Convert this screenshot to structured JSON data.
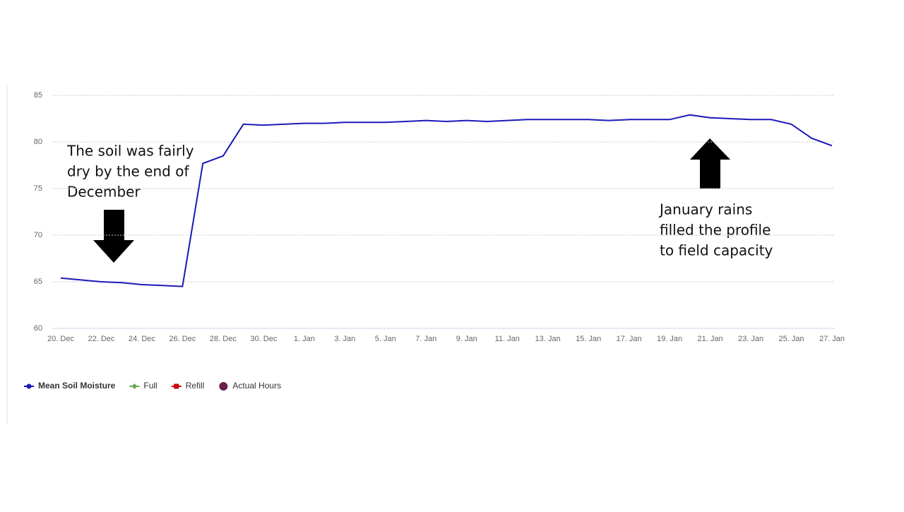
{
  "chart_data": {
    "type": "line",
    "categories": [
      "20. Dec",
      null,
      "22. Dec",
      null,
      "24. Dec",
      null,
      "26. Dec",
      null,
      "28. Dec",
      null,
      "30. Dec",
      null,
      "1. Jan",
      null,
      "3. Jan",
      null,
      "5. Jan",
      null,
      "7. Jan",
      null,
      "9. Jan",
      null,
      "11. Jan",
      null,
      "13. Jan",
      null,
      "15. Jan",
      null,
      "17. Jan",
      null,
      "19. Jan",
      null,
      "21. Jan",
      null,
      "23. Jan",
      null,
      "25. Jan",
      null,
      "27. Jan"
    ],
    "series": [
      {
        "name": "Mean Soil Moisture",
        "color": "#1a1ab8",
        "marker": "circle",
        "values": [
          65.4,
          65.2,
          65.0,
          64.9,
          64.7,
          64.6,
          64.5,
          77.7,
          78.5,
          81.9,
          81.8,
          81.9,
          82.0,
          82.0,
          82.1,
          82.1,
          82.1,
          82.2,
          82.3,
          82.2,
          82.3,
          82.2,
          82.3,
          82.4,
          82.4,
          82.4,
          82.4,
          82.3,
          82.4,
          82.4,
          82.4,
          82.9,
          82.6,
          82.5,
          82.4,
          82.4,
          81.9,
          80.4,
          79.6
        ]
      },
      {
        "name": "Full",
        "color": "#6aa84f",
        "marker": "diamond",
        "values": [
          null,
          null,
          null,
          null,
          null,
          null,
          null,
          null,
          null,
          null,
          null,
          null,
          null,
          null,
          null,
          null,
          null,
          null,
          null,
          null,
          null,
          null,
          null,
          null,
          null,
          null,
          null,
          null,
          null,
          null,
          null,
          null,
          null,
          null,
          null,
          null,
          null,
          null,
          null
        ]
      },
      {
        "name": "Refill",
        "color": "#cc0000",
        "marker": "square",
        "values": [
          null,
          null,
          null,
          null,
          null,
          null,
          null,
          null,
          null,
          null,
          null,
          null,
          null,
          null,
          null,
          null,
          null,
          null,
          null,
          null,
          null,
          null,
          null,
          null,
          null,
          null,
          null,
          null,
          null,
          null,
          null,
          null,
          null,
          null,
          null,
          null,
          null,
          null,
          null
        ]
      },
      {
        "name": "Actual Hours",
        "color": "#6b1f4f",
        "marker": "circle",
        "values": [
          null,
          null,
          null,
          null,
          null,
          null,
          null,
          null,
          null,
          null,
          null,
          null,
          null,
          null,
          null,
          null,
          null,
          null,
          null,
          null,
          null,
          null,
          null,
          null,
          null,
          null,
          null,
          null,
          null,
          null,
          null,
          null,
          null,
          null,
          null,
          null,
          null,
          null,
          null
        ]
      }
    ],
    "ylim": [
      60,
      85
    ],
    "yticks": [
      60,
      65,
      70,
      75,
      80,
      85
    ],
    "grid": true,
    "legend": "bottom-left",
    "annotations": [
      {
        "lines": [
          "The soil was fairly",
          "dry by the end of",
          "December"
        ]
      },
      {
        "lines": [
          "January rains",
          "filled the profile",
          "to field capacity"
        ]
      }
    ]
  }
}
